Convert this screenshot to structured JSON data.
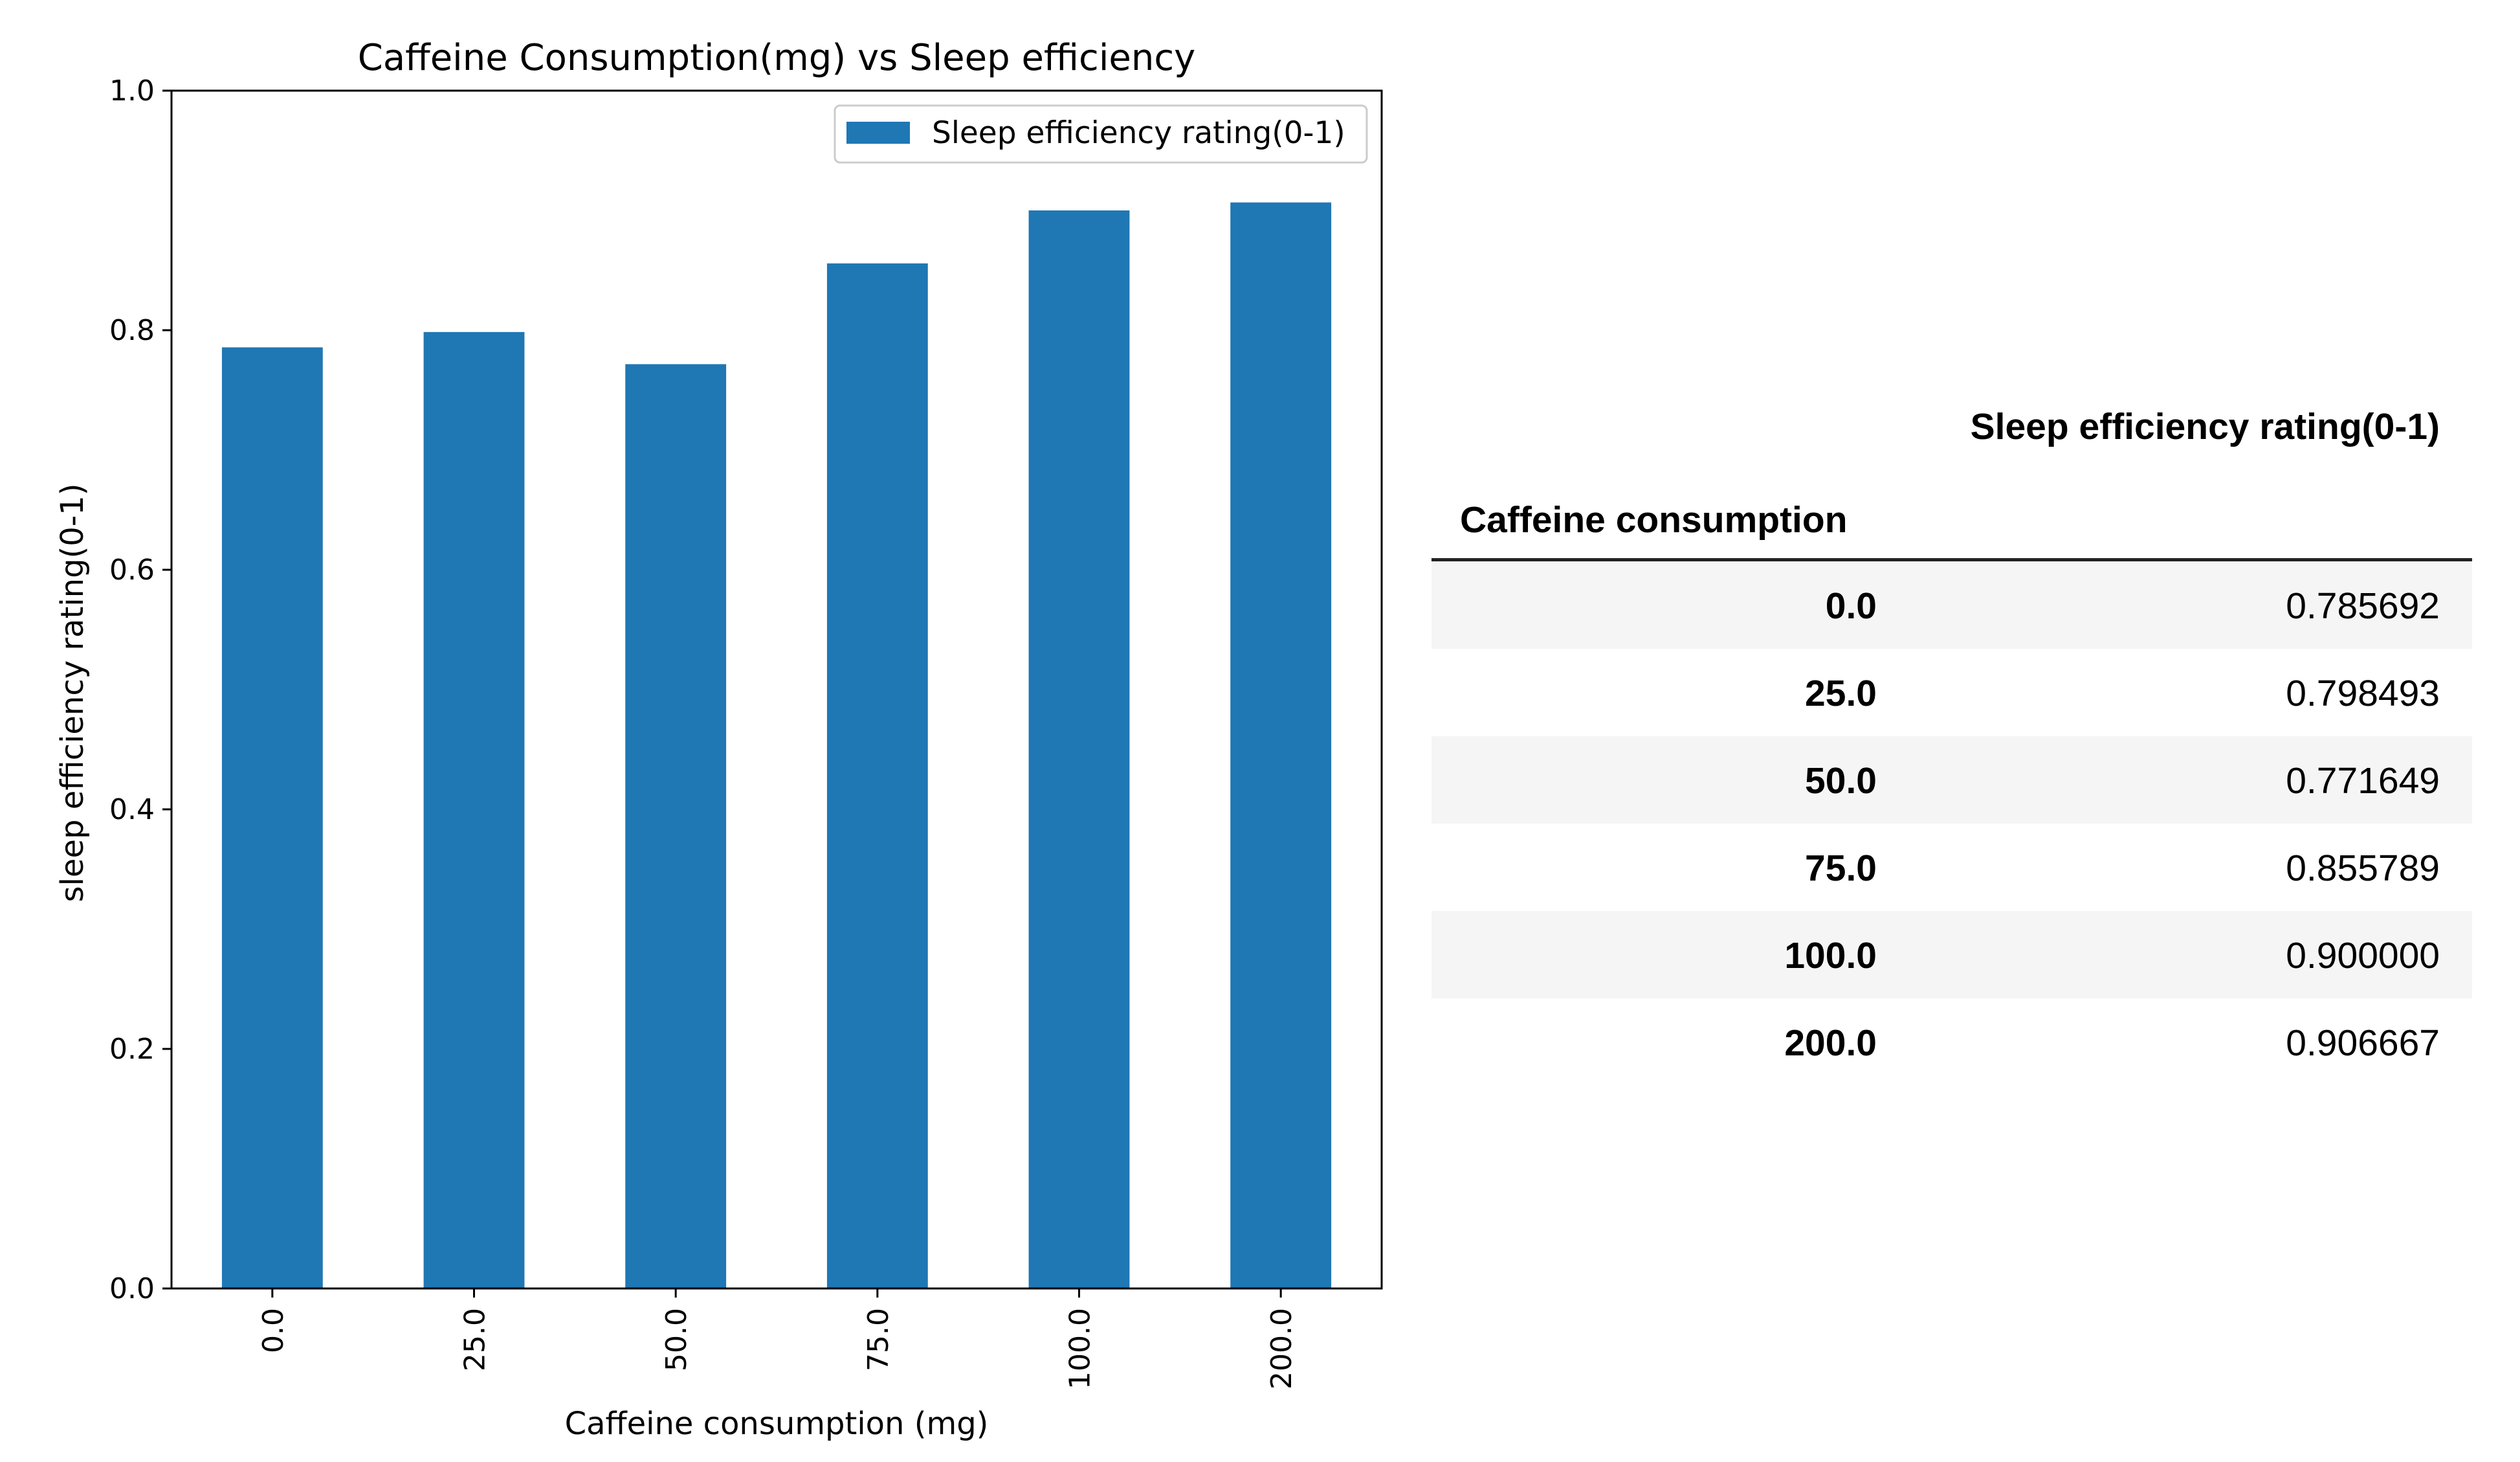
{
  "chart_data": {
    "type": "bar",
    "title": "Caffeine Consumption(mg) vs Sleep efficiency",
    "xlabel": "Caffeine consumption (mg)",
    "ylabel": "sleep efficiency rating(0-1)",
    "categories": [
      "0.0",
      "25.0",
      "50.0",
      "75.0",
      "100.0",
      "200.0"
    ],
    "series": [
      {
        "name": "Sleep efficiency rating(0-1)",
        "values": [
          0.785692,
          0.798493,
          0.771649,
          0.855789,
          0.9,
          0.906667
        ]
      }
    ],
    "ylim": [
      0,
      1.0
    ],
    "yticks": [
      "0.0",
      "0.2",
      "0.4",
      "0.6",
      "0.8",
      "1.0"
    ],
    "legend": "top-right",
    "grid": false,
    "bar_color": "#1f77b4"
  },
  "table": {
    "column_header": "Sleep efficiency rating(0-1)",
    "index_header": "Caffeine consumption",
    "rows": [
      {
        "index": "0.0",
        "value": "0.785692"
      },
      {
        "index": "25.0",
        "value": "0.798493"
      },
      {
        "index": "50.0",
        "value": "0.771649"
      },
      {
        "index": "75.0",
        "value": "0.855789"
      },
      {
        "index": "100.0",
        "value": "0.900000"
      },
      {
        "index": "200.0",
        "value": "0.906667"
      }
    ]
  }
}
